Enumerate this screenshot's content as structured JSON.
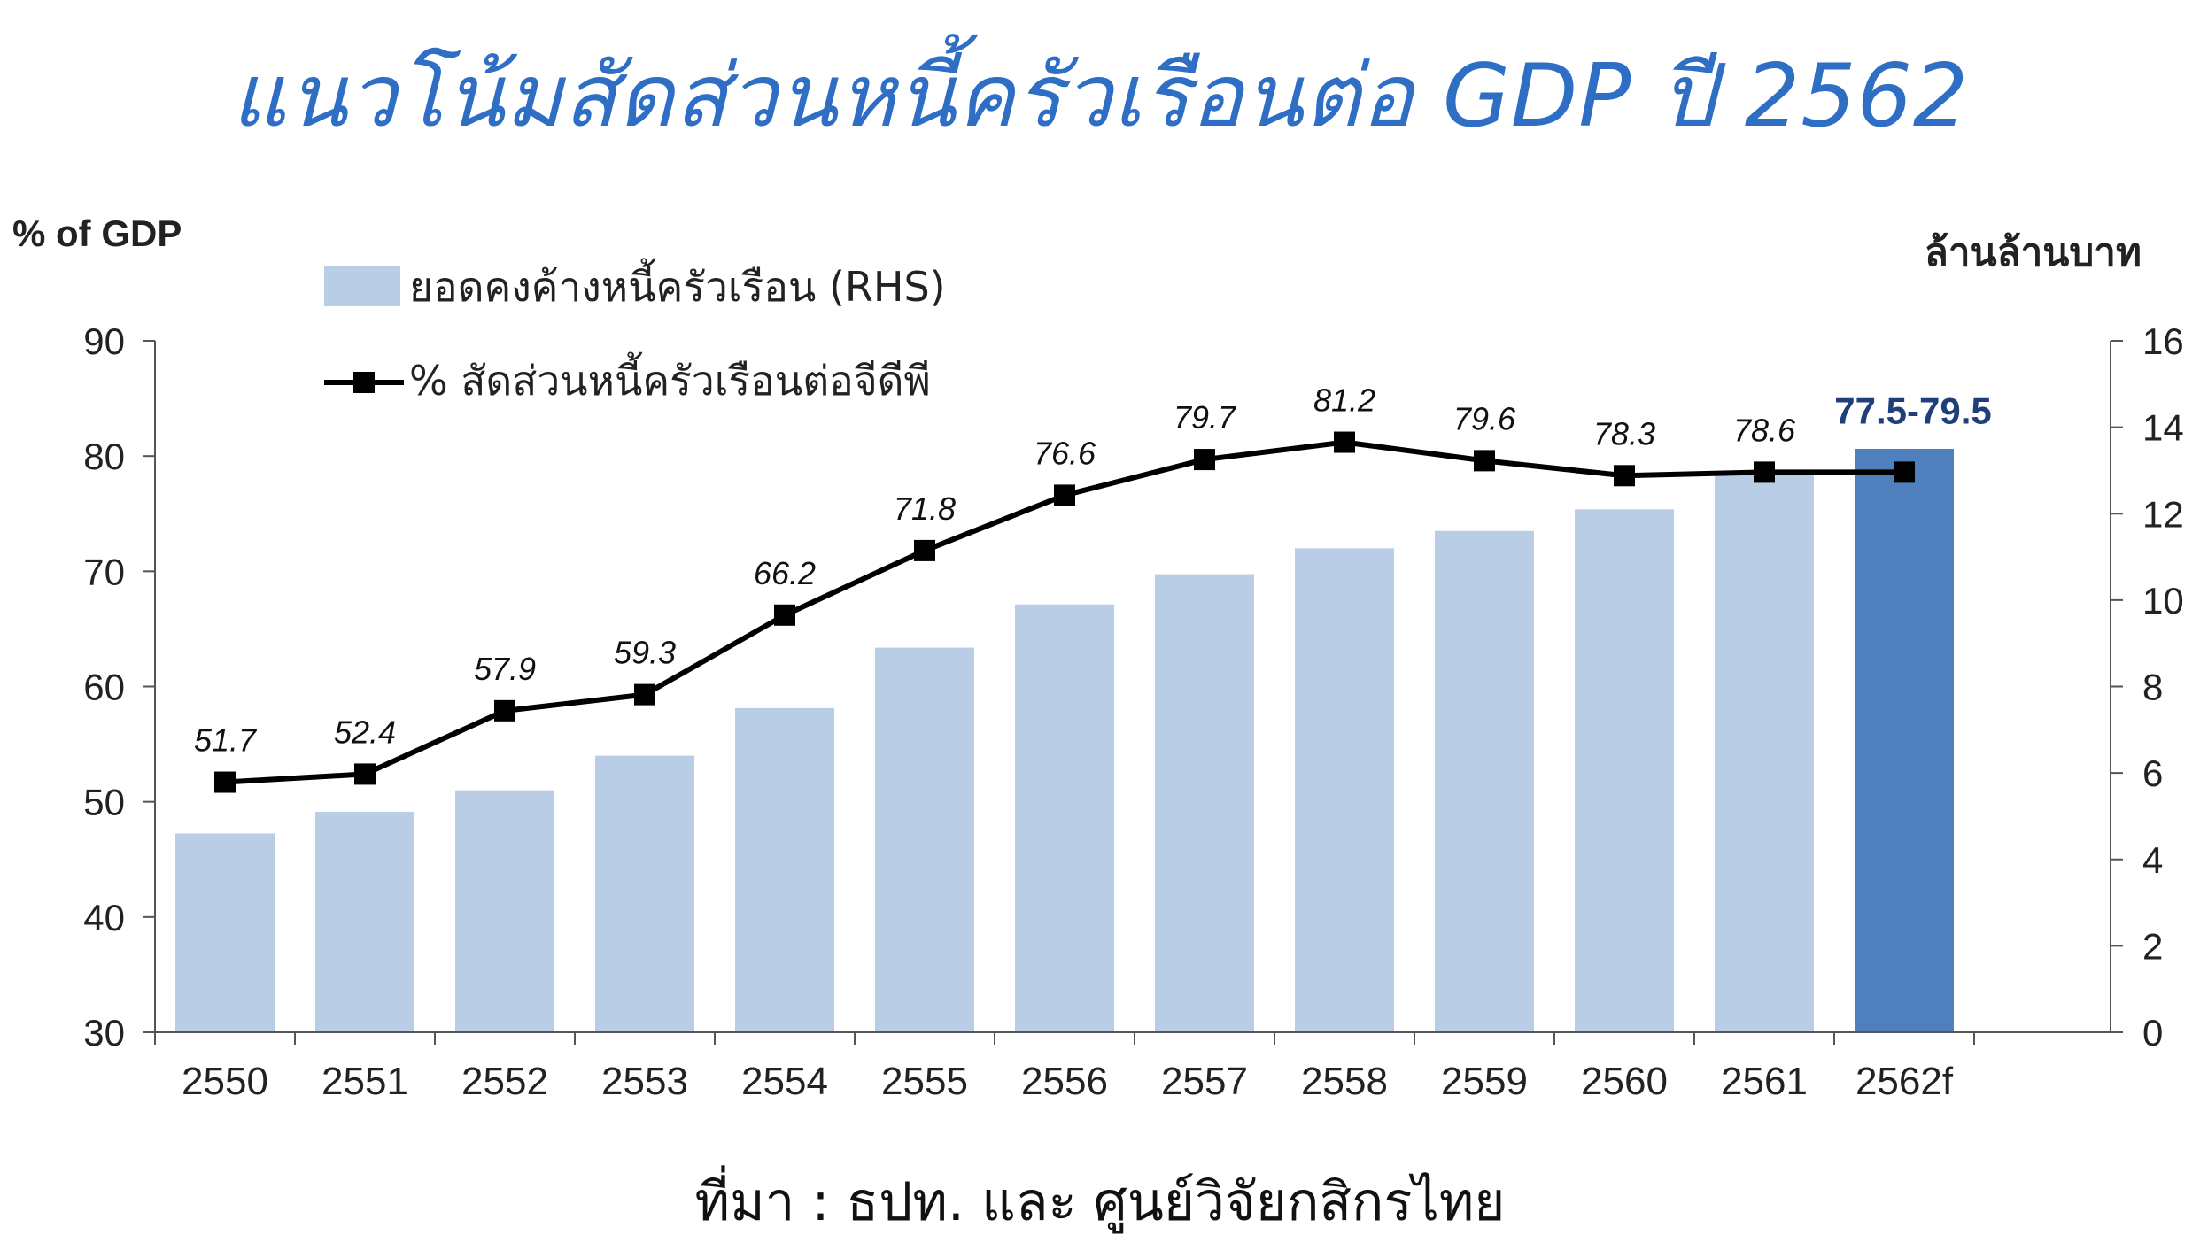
{
  "title": "แนวโน้มสัดส่วนหนี้ครัวเรือนต่อ GDP ปี 2562",
  "source": "ที่มา : ธปท. และ ศูนย์วิจัยกสิกรไทย",
  "colors": {
    "title": "#2e6ec4",
    "bar": "#b9cde6",
    "bar_highlight": "#4f80bd",
    "line": "#000000",
    "highlight_label": "#1f3f7a"
  },
  "chart_data": {
    "type": "bar",
    "categories": [
      "2550",
      "2551",
      "2552",
      "2553",
      "2554",
      "2555",
      "2556",
      "2557",
      "2558",
      "2559",
      "2560",
      "2561",
      "2562f"
    ],
    "ylabel_left": "% of GDP",
    "ylabel_right": "ล้านล้านบาท",
    "ylim_left": [
      30,
      90
    ],
    "yticks_left": [
      30,
      40,
      50,
      60,
      70,
      80,
      90
    ],
    "ylim_right": [
      0,
      16
    ],
    "yticks_right": [
      0,
      2,
      4,
      6,
      8,
      10,
      12,
      14,
      16
    ],
    "legend_placement": "top-left",
    "grid": false,
    "series": [
      {
        "name": "ยอดคงค้างหนี้ครัวเรือน (RHS)",
        "type": "bar",
        "axis": "right",
        "values": [
          4.6,
          5.1,
          5.6,
          6.4,
          7.5,
          8.9,
          9.9,
          10.6,
          11.2,
          11.6,
          12.1,
          12.9,
          13.5
        ],
        "highlight_index": 12
      },
      {
        "name": "% สัดส่วนหนี้ครัวเรือนต่อจีดีพี",
        "type": "line",
        "axis": "left",
        "values": [
          51.7,
          52.4,
          57.9,
          59.3,
          66.2,
          71.8,
          76.6,
          79.7,
          81.2,
          79.6,
          78.3,
          78.6,
          78.6
        ],
        "labels": [
          "51.7",
          "52.4",
          "57.9",
          "59.3",
          "66.2",
          "71.8",
          "76.6",
          "79.7",
          "81.2",
          "79.6",
          "78.3",
          "78.6",
          "77.5-79.5"
        ]
      }
    ]
  }
}
